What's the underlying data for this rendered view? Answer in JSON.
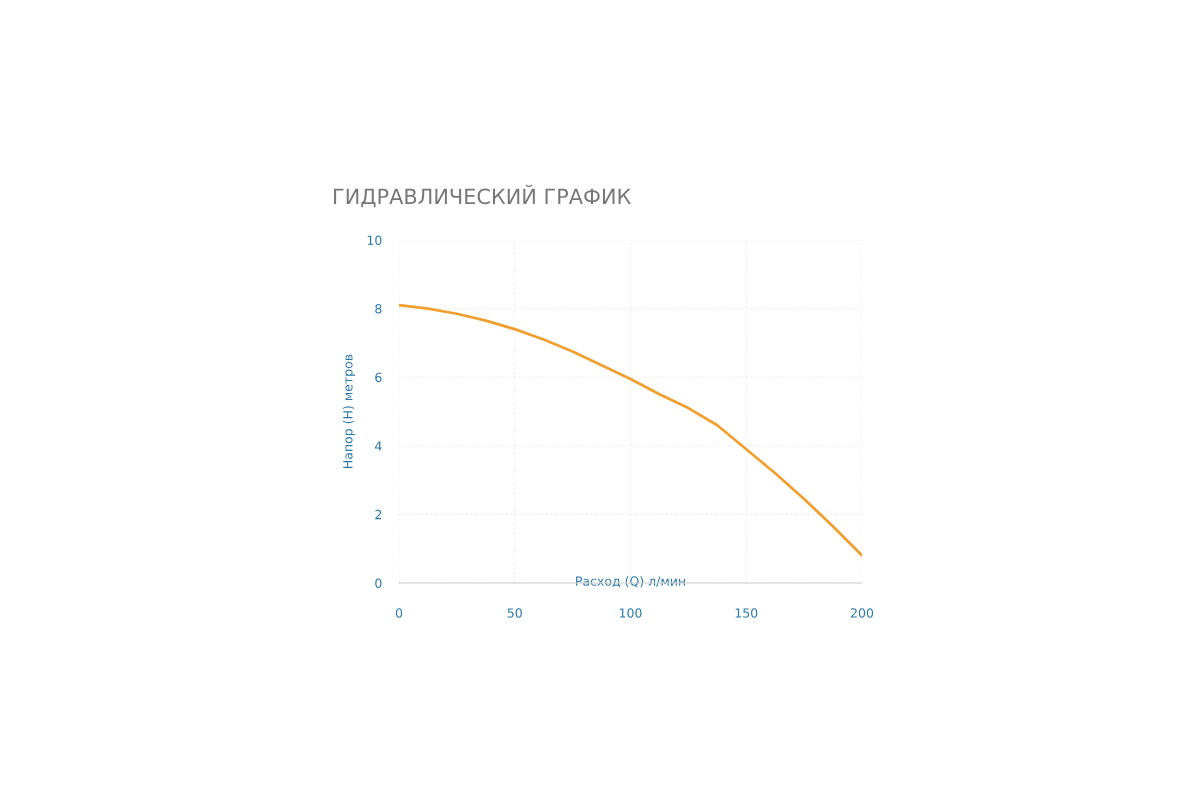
{
  "chart_data": {
    "type": "line",
    "title": "ГИДРАВЛИЧЕСКИЙ ГРАФИК",
    "xlabel": "Расход (Q) л/мин",
    "ylabel": "Напор (H) метров",
    "x": [
      0,
      12.5,
      25,
      37.5,
      50,
      62.5,
      75,
      87.5,
      100,
      112.5,
      125,
      137.5,
      150,
      162.5,
      175,
      187.5,
      200
    ],
    "series": [
      {
        "color": "#f0a030",
        "values": [
          8.1,
          8.0,
          7.85,
          7.65,
          7.4,
          7.1,
          6.75,
          6.35,
          5.95,
          5.5,
          5.1,
          4.6,
          3.9,
          3.2,
          2.45,
          1.65,
          0.8
        ]
      }
    ],
    "xlim": [
      0,
      200
    ],
    "ylim": [
      0,
      10
    ],
    "xticks": [
      0,
      50,
      100,
      150,
      200
    ],
    "yticks": [
      0,
      2,
      4,
      6,
      8,
      10
    ],
    "grid": true,
    "marker": "none",
    "line_style": "solid",
    "legend": false
  }
}
